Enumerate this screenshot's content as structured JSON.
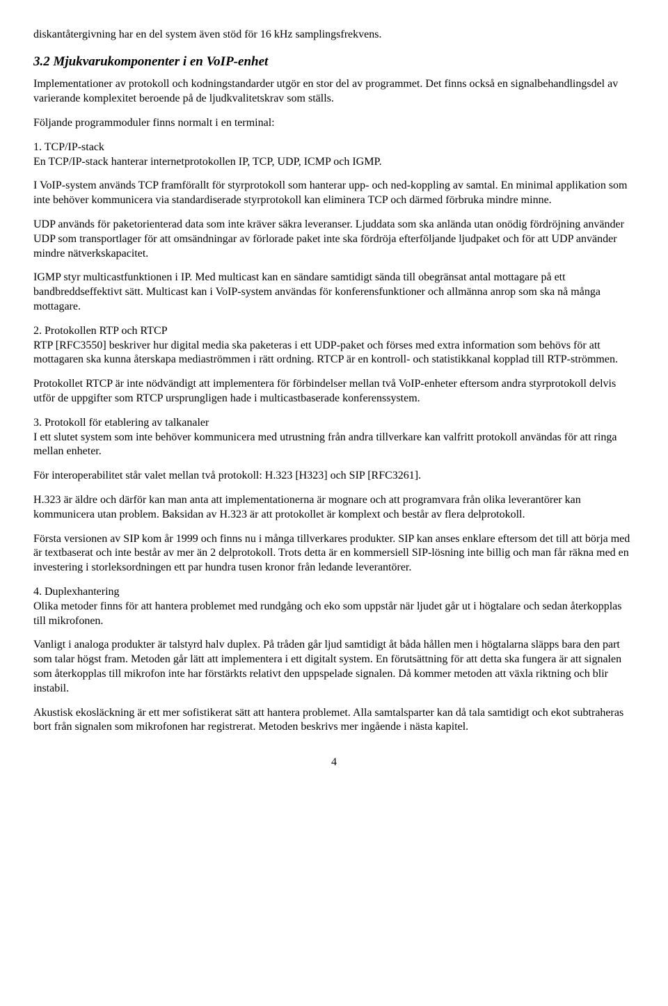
{
  "typography": {
    "body_font": "Times New Roman",
    "body_size_pt": 12,
    "heading_size_pt": 14,
    "heading_weight": "bold",
    "heading_style": "italic",
    "text_color": "#000000",
    "background_color": "#ffffff"
  },
  "p_intro": "diskantåtergivning har en del system även stöd för 16 kHz samplingsfrekvens.",
  "h_3_2": "3.2 Mjukvarukomponenter i en VoIP-enhet",
  "p1": "Implementationer av protokoll och kodningstandarder utgör en stor del av programmet. Det finns också en signalbehandlingsdel av varierande komplexitet beroende på de ljudkvalitetskrav som ställs.",
  "p2": "Följande programmoduler finns normalt i en terminal:",
  "p3a": "1. TCP/IP-stack",
  "p3b": "En TCP/IP-stack hanterar internetprotokollen IP, TCP, UDP, ICMP och IGMP.",
  "p4": "I VoIP-system används TCP framförallt för styrprotokoll som hanterar upp- och ned-koppling av samtal. En minimal applikation som inte behöver kommunicera via standardiserade styrprotokoll kan eliminera TCP och därmed förbruka mindre minne.",
  "p5": "UDP används för paketorienterad data som inte kräver säkra leveranser. Ljuddata som ska anlända utan onödig fördröjning använder UDP som transportlager för att omsändningar av förlorade paket inte ska fördröja efterföljande ljudpaket och för att UDP använder mindre nätverkskapacitet.",
  "p6": "IGMP styr multicastfunktionen i IP. Med multicast kan en sändare samtidigt sända till obegränsat antal mottagare på ett bandbreddseffektivt sätt. Multicast kan i VoIP-system användas för konferensfunktioner och allmänna anrop som ska nå många mottagare.",
  "p7a": "2. Protokollen RTP och RTCP",
  "p7b": "RTP [RFC3550] beskriver hur digital media ska paketeras i ett UDP-paket och förses med extra information som behövs för att mottagaren ska kunna återskapa mediaströmmen i rätt ordning. RTCP är en kontroll- och statistikkanal kopplad till RTP-strömmen.",
  "p8": "Protokollet RTCP är inte nödvändigt att implementera för förbindelser mellan två VoIP-enheter eftersom andra styrprotokoll delvis utför de uppgifter som RTCP ursprungligen hade i multicastbaserade konferenssystem.",
  "p9a": "3. Protokoll för etablering av talkanaler",
  "p9b": "I ett slutet system som inte behöver kommunicera med utrustning från andra tillverkare kan valfritt protokoll användas för att ringa mellan enheter.",
  "p10": "För interoperabilitet står valet mellan två protokoll: H.323 [H323] och SIP [RFC3261].",
  "p11": "H.323 är äldre och därför kan man anta att implementationerna är mognare och att programvara från olika leverantörer kan kommunicera utan problem. Baksidan av H.323 är att protokollet är komplext och består av flera delprotokoll.",
  "p12": "Första versionen av SIP kom år 1999 och finns nu i många tillverkares produkter. SIP kan anses enklare eftersom det till att börja med är textbaserat och inte består av mer än 2 delprotokoll. Trots detta är en kommersiell SIP-lösning inte billig och man får räkna med en investering i storleksordningen ett par hundra tusen kronor från ledande leverantörer.",
  "p13a": "4. Duplexhantering",
  "p13b": "Olika metoder finns för att hantera problemet med rundgång och eko som uppstår när ljudet går ut i högtalare och sedan återkopplas till mikrofonen.",
  "p14": "Vanligt i analoga produkter är talstyrd halv duplex. På tråden går ljud samtidigt åt båda hållen men i högtalarna släpps bara den part som talar högst fram. Metoden går lätt att implementera i ett digitalt system. En förutsättning för att detta ska fungera är att signalen som återkopplas till mikrofon inte har förstärkts relativt den uppspelade signalen. Då kommer metoden att växla riktning och blir instabil.",
  "p15": "Akustisk ekosläckning är ett mer sofistikerat sätt att hantera problemet. Alla samtalsparter kan då tala samtidigt och ekot subtraheras bort från signalen som mikrofonen har registrerat. Metoden beskrivs mer ingående i nästa kapitel.",
  "page_number": "4"
}
